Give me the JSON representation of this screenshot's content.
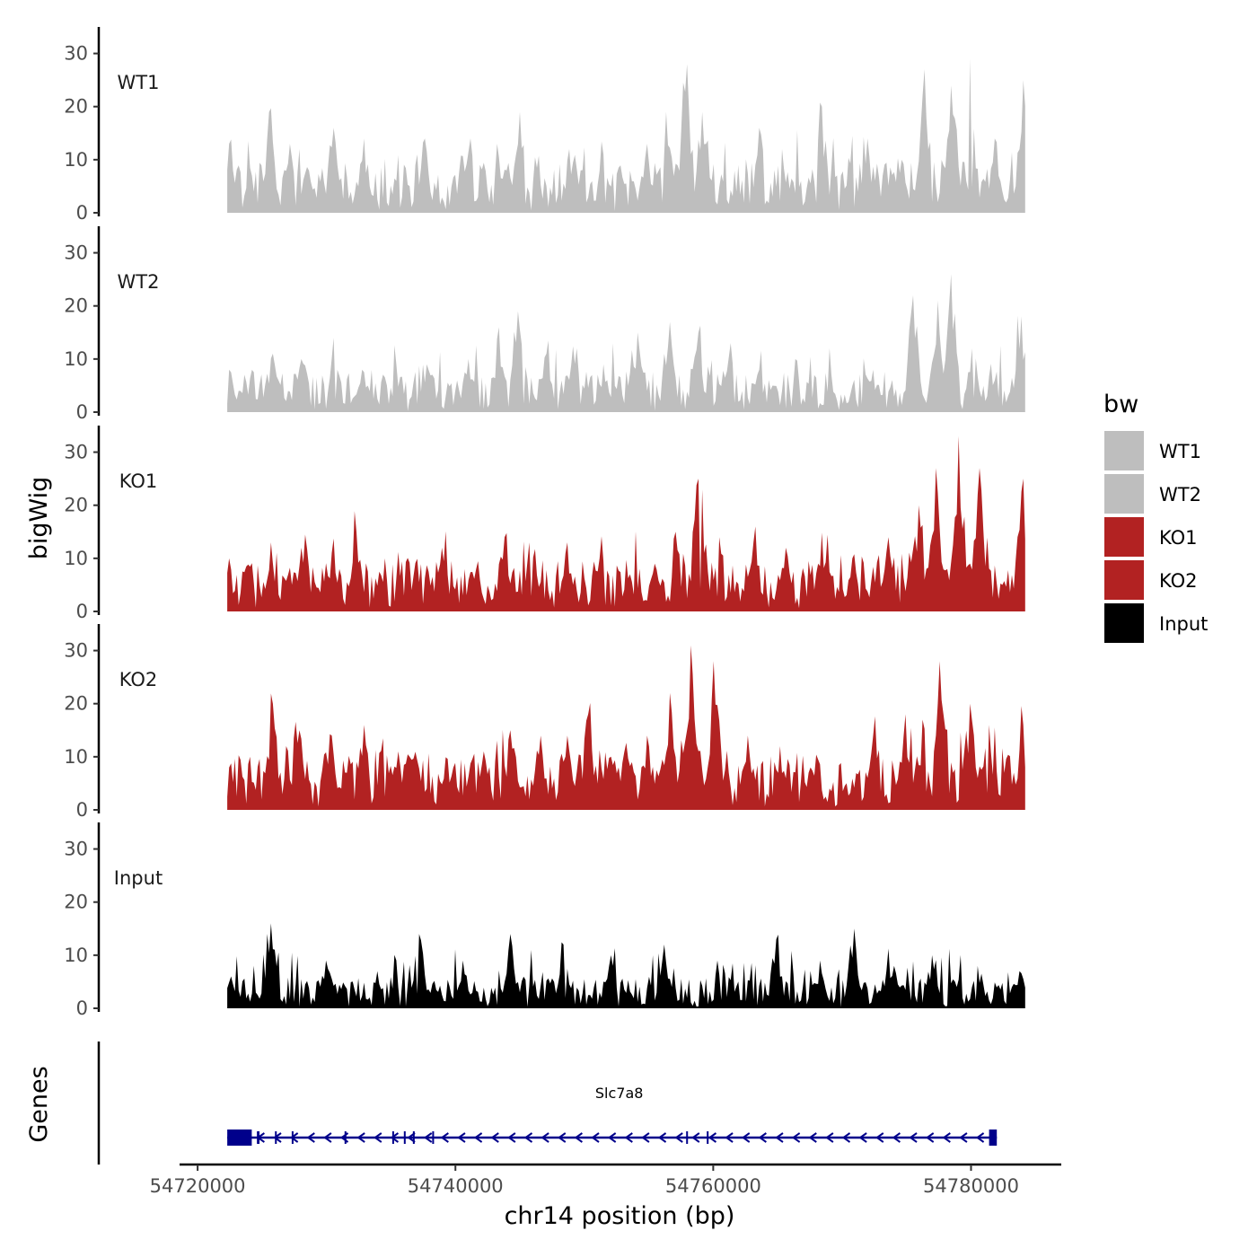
{
  "chart_data": {
    "type": "area",
    "ylabel": "bigWig",
    "genes_label": "Genes",
    "xlabel": "chr14 position (bp)",
    "xlim": [
      54718600,
      54787000
    ],
    "data_range": [
      54722300,
      54784200
    ],
    "x_ticks": [
      54720000,
      54740000,
      54760000,
      54780000
    ],
    "x_tick_labels": [
      "54720000",
      "54740000",
      "54760000",
      "54780000"
    ],
    "y_ticks": [
      0,
      10,
      20,
      30
    ],
    "y_tick_labels": [
      "0",
      "10",
      "20",
      "30"
    ],
    "ylim": [
      0,
      35
    ],
    "legend": {
      "title": "bw",
      "entries": [
        {
          "label": "WT1",
          "color": "#bebebe"
        },
        {
          "label": "WT2",
          "color": "#bebebe"
        },
        {
          "label": "KO1",
          "color": "#b22222"
        },
        {
          "label": "KO2",
          "color": "#b22222"
        },
        {
          "label": "Input",
          "color": "#000000"
        }
      ]
    },
    "series": [
      {
        "name": "WT1",
        "color": "#bebebe",
        "baseline": 5,
        "peaks": [
          [
            54722400,
            13
          ],
          [
            54725600,
            19
          ],
          [
            54727100,
            13
          ],
          [
            54730500,
            16
          ],
          [
            54732900,
            14
          ],
          [
            54735400,
            6
          ],
          [
            54737600,
            14
          ],
          [
            54741100,
            14
          ],
          [
            54743300,
            13
          ],
          [
            54745000,
            19
          ],
          [
            54748900,
            12
          ],
          [
            54751500,
            11
          ],
          [
            54754800,
            13
          ],
          [
            54756400,
            19
          ],
          [
            54757900,
            28
          ],
          [
            54759200,
            19
          ],
          [
            54763600,
            16
          ],
          [
            54765300,
            12
          ],
          [
            54768400,
            20
          ],
          [
            54771900,
            14
          ],
          [
            54774600,
            10
          ],
          [
            54776400,
            27
          ],
          [
            54778500,
            24
          ],
          [
            54779900,
            29
          ],
          [
            54781900,
            14
          ],
          [
            54784100,
            25
          ]
        ]
      },
      {
        "name": "WT2",
        "color": "#bebebe",
        "baseline": 4,
        "peaks": [
          [
            54722500,
            8
          ],
          [
            54725800,
            11
          ],
          [
            54728100,
            10
          ],
          [
            54730600,
            14
          ],
          [
            54732800,
            8
          ],
          [
            54735100,
            3
          ],
          [
            54737800,
            9
          ],
          [
            54741000,
            10
          ],
          [
            54743400,
            16
          ],
          [
            54744800,
            19
          ],
          [
            54747000,
            11
          ],
          [
            54749400,
            12
          ],
          [
            54751500,
            9
          ],
          [
            54754100,
            15
          ],
          [
            54756600,
            17
          ],
          [
            54758800,
            15
          ],
          [
            54761300,
            13
          ],
          [
            54763500,
            8
          ],
          [
            54766400,
            10
          ],
          [
            54769200,
            7
          ],
          [
            54772400,
            8
          ],
          [
            54775500,
            22
          ],
          [
            54777400,
            21
          ],
          [
            54778500,
            26
          ],
          [
            54780100,
            12
          ],
          [
            54783900,
            18
          ]
        ]
      },
      {
        "name": "KO1",
        "color": "#b22222",
        "baseline": 5,
        "peaks": [
          [
            54722400,
            10
          ],
          [
            54725700,
            13
          ],
          [
            54728100,
            12
          ],
          [
            54730400,
            11
          ],
          [
            54732300,
            15
          ],
          [
            54734500,
            10
          ],
          [
            54736600,
            4
          ],
          [
            54739000,
            12
          ],
          [
            54741600,
            8
          ],
          [
            54743800,
            14
          ],
          [
            54745800,
            13
          ],
          [
            54748700,
            13
          ],
          [
            54751200,
            10
          ],
          [
            54753500,
            7
          ],
          [
            54755400,
            9
          ],
          [
            54757100,
            15
          ],
          [
            54758800,
            25
          ],
          [
            54760500,
            14
          ],
          [
            54763200,
            16
          ],
          [
            54765600,
            12
          ],
          [
            54768200,
            9
          ],
          [
            54770800,
            10
          ],
          [
            54773600,
            14
          ],
          [
            54775900,
            20
          ],
          [
            54777300,
            27
          ],
          [
            54779000,
            33
          ],
          [
            54780600,
            27
          ],
          [
            54782400,
            5
          ],
          [
            54784000,
            25
          ]
        ]
      },
      {
        "name": "KO2",
        "color": "#b22222",
        "baseline": 6,
        "peaks": [
          [
            54722500,
            8
          ],
          [
            54724000,
            10
          ],
          [
            54725800,
            20
          ],
          [
            54727900,
            15
          ],
          [
            54730400,
            14
          ],
          [
            54732900,
            16
          ],
          [
            54735500,
            11
          ],
          [
            54737800,
            4
          ],
          [
            54739800,
            8
          ],
          [
            54742200,
            11
          ],
          [
            54744300,
            15
          ],
          [
            54746600,
            14
          ],
          [
            54748700,
            14
          ],
          [
            54750300,
            18
          ],
          [
            54752600,
            8
          ],
          [
            54754900,
            14
          ],
          [
            54756600,
            22
          ],
          [
            54758300,
            31
          ],
          [
            54760100,
            28
          ],
          [
            54762700,
            14
          ],
          [
            54765200,
            12
          ],
          [
            54767600,
            8
          ],
          [
            54770300,
            5
          ],
          [
            54772400,
            14
          ],
          [
            54774900,
            18
          ],
          [
            54776300,
            17
          ],
          [
            54777600,
            28
          ],
          [
            54779900,
            20
          ],
          [
            54781400,
            16
          ],
          [
            54783300,
            7
          ],
          [
            54784000,
            16
          ]
        ]
      },
      {
        "name": "Input",
        "color": "#000000",
        "baseline": 3,
        "peaks": [
          [
            54722600,
            6
          ],
          [
            54725700,
            16
          ],
          [
            54730000,
            9
          ],
          [
            54734000,
            7
          ],
          [
            54737200,
            14
          ],
          [
            54740600,
            9
          ],
          [
            54744300,
            14
          ],
          [
            54748400,
            12
          ],
          [
            54752000,
            10
          ],
          [
            54756200,
            12
          ],
          [
            54760300,
            9
          ],
          [
            54764900,
            13
          ],
          [
            54768300,
            9
          ],
          [
            54770900,
            15
          ],
          [
            54774000,
            8
          ],
          [
            54777000,
            10
          ],
          [
            54780500,
            8
          ],
          [
            54783800,
            7
          ]
        ]
      }
    ],
    "gene": {
      "name": "Slc7a8",
      "strand": "-",
      "start": 54722300,
      "end": 54782000,
      "exons": [
        [
          54722300,
          54724200
        ],
        [
          54724600,
          54724800
        ],
        [
          54726000,
          54726100
        ],
        [
          54727300,
          54727400
        ],
        [
          54731400,
          54731500
        ],
        [
          54735100,
          54735200
        ],
        [
          54736000,
          54736100
        ],
        [
          54736700,
          54736800
        ],
        [
          54738200,
          54738300
        ],
        [
          54757900,
          54758000
        ],
        [
          54759500,
          54759600
        ],
        [
          54781400,
          54782000
        ]
      ]
    }
  }
}
